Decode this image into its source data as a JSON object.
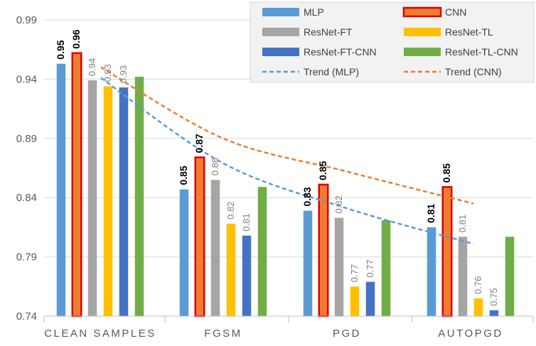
{
  "chart_data": {
    "type": "bar",
    "title": "",
    "xlabel": "",
    "ylabel": "",
    "ylim": [
      0.74,
      0.99
    ],
    "yticks": [
      "0.74",
      "0.79",
      "0.84",
      "0.89",
      "0.94",
      "0.99"
    ],
    "ytick_values": [
      0.74,
      0.79,
      0.84,
      0.89,
      0.94,
      0.99
    ],
    "grid": true,
    "legend_position": "top-right",
    "categories": [
      "CLEAN SAMPLES",
      "FGSM",
      "PGD",
      "AUTOPGD"
    ],
    "series": [
      {
        "name": "MLP",
        "color": "#5b9bd5",
        "values": [
          0.953,
          0.847,
          0.829,
          0.815
        ],
        "labels": [
          "0.95",
          "0.85",
          "0.83",
          "0.81"
        ],
        "label_style": "bold"
      },
      {
        "name": "CNN",
        "color": "#ed7d31",
        "border": "#e00000",
        "values": [
          0.962,
          0.874,
          0.851,
          0.849
        ],
        "labels": [
          "0.96",
          "0.87",
          "0.85",
          "0.85"
        ],
        "label_style": "bold"
      },
      {
        "name": "ResNet-FT",
        "color": "#a5a5a5",
        "values": [
          0.939,
          0.855,
          0.823,
          0.807
        ],
        "labels": [
          "0.94",
          "0.86",
          "0.82",
          "0.81"
        ],
        "label_style": "light"
      },
      {
        "name": "ResNet-TL",
        "color": "#ffc000",
        "values": [
          0.934,
          0.818,
          0.765,
          0.755
        ],
        "labels": [
          "0.93",
          "0.82",
          "0.77",
          "0.76"
        ],
        "label_style": "light"
      },
      {
        "name": "ResNet-FT-CNN",
        "color": "#4472c4",
        "values": [
          0.933,
          0.808,
          0.769,
          0.745
        ],
        "labels": [
          "0.93",
          "0.81",
          "0.77",
          "0.75"
        ],
        "label_style": "light"
      },
      {
        "name": "ResNet-TL-CNN",
        "color": "#70ad47",
        "values": [
          0.942,
          0.849,
          0.821,
          0.807
        ],
        "labels": [
          "",
          "",
          "",
          ""
        ],
        "label_style": "none"
      }
    ],
    "trends": [
      {
        "name": "Trend (MLP)",
        "color": "#5b9bd5",
        "values": [
          0.941,
          0.869,
          0.831,
          0.801
        ]
      },
      {
        "name": "Trend (CNN)",
        "color": "#ed7d31",
        "values": [
          0.95,
          0.89,
          0.862,
          0.835
        ]
      }
    ]
  }
}
